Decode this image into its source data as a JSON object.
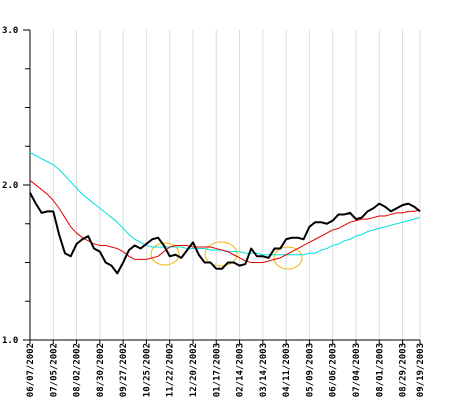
{
  "chart_data": {
    "type": "line",
    "categories": [
      "06/07/2002",
      null,
      null,
      null,
      "07/05/2002",
      null,
      null,
      null,
      "08/02/2002",
      null,
      null,
      null,
      "08/30/2002",
      null,
      null,
      null,
      "09/27/2002",
      null,
      null,
      null,
      "10/25/2002",
      null,
      null,
      null,
      "11/22/2002",
      null,
      null,
      null,
      "12/20/2002",
      null,
      null,
      null,
      "01/17/2003",
      null,
      null,
      null,
      "02/14/2003",
      null,
      null,
      null,
      "03/14/2003",
      null,
      null,
      null,
      "04/11/2003",
      null,
      null,
      null,
      "05/09/2003",
      null,
      null,
      null,
      "06/06/2003",
      null,
      null,
      null,
      "07/04/2003",
      null,
      null,
      null,
      "08/01/2003",
      null,
      null,
      null,
      "08/29/2003",
      null,
      null,
      "09/19/2003"
    ],
    "series": [
      {
        "color": "#000000",
        "values": [
          1.95,
          1.88,
          1.82,
          1.83,
          1.83,
          1.68,
          1.56,
          1.54,
          1.62,
          1.65,
          1.67,
          1.59,
          1.57,
          1.5,
          1.48,
          1.43,
          1.5,
          1.58,
          1.61,
          1.59,
          1.62,
          1.65,
          1.66,
          1.61,
          1.54,
          1.55,
          1.53,
          1.58,
          1.63,
          1.55,
          1.5,
          1.5,
          1.46,
          1.46,
          1.5,
          1.5,
          1.48,
          1.49,
          1.59,
          1.54,
          1.54,
          1.53,
          1.59,
          1.59,
          1.65,
          1.66,
          1.66,
          1.65,
          1.73,
          1.76,
          1.76,
          1.75,
          1.77,
          1.81,
          1.81,
          1.82,
          1.78,
          1.79,
          1.83,
          1.85,
          1.88,
          1.86,
          1.83,
          1.85,
          1.87,
          1.88,
          1.86,
          1.83
        ]
      },
      {
        "color": "#e00000",
        "values": [
          2.03,
          2.0,
          1.97,
          1.94,
          1.9,
          1.85,
          1.79,
          1.73,
          1.69,
          1.66,
          1.64,
          1.62,
          1.61,
          1.61,
          1.6,
          1.59,
          1.57,
          1.54,
          1.52,
          1.52,
          1.52,
          1.53,
          1.54,
          1.57,
          1.6,
          1.61,
          1.61,
          1.61,
          1.6,
          1.6,
          1.6,
          1.6,
          1.59,
          1.58,
          1.57,
          1.55,
          1.53,
          1.51,
          1.5,
          1.5,
          1.5,
          1.51,
          1.52,
          1.53,
          1.55,
          1.57,
          1.59,
          1.61,
          1.63,
          1.65,
          1.67,
          1.69,
          1.71,
          1.72,
          1.74,
          1.76,
          1.77,
          1.78,
          1.78,
          1.79,
          1.8,
          1.8,
          1.81,
          1.82,
          1.82,
          1.83,
          1.83,
          1.84
        ]
      },
      {
        "color": "#00e0e0",
        "values": [
          2.21,
          2.19,
          2.17,
          2.15,
          2.13,
          2.1,
          2.06,
          2.02,
          1.98,
          1.94,
          1.91,
          1.88,
          1.85,
          1.82,
          1.79,
          1.76,
          1.72,
          1.68,
          1.65,
          1.63,
          1.61,
          1.6,
          1.6,
          1.6,
          1.6,
          1.6,
          1.6,
          1.59,
          1.59,
          1.59,
          1.59,
          1.58,
          1.58,
          1.58,
          1.57,
          1.57,
          1.57,
          1.56,
          1.56,
          1.56,
          1.55,
          1.55,
          1.55,
          1.55,
          1.55,
          1.55,
          1.55,
          1.55,
          1.56,
          1.56,
          1.58,
          1.59,
          1.61,
          1.62,
          1.64,
          1.65,
          1.67,
          1.68,
          1.7,
          1.71,
          1.72,
          1.73,
          1.74,
          1.75,
          1.76,
          1.77,
          1.78,
          1.79
        ]
      }
    ],
    "ylim": [
      1,
      3
    ],
    "yticks": [
      {
        "value": 1,
        "label": "1.0"
      },
      {
        "value": 2,
        "label": "2.0"
      },
      {
        "value": 3,
        "label": "3.0"
      }
    ],
    "yminorticks": [
      1.25,
      1.5,
      1.75,
      2.25,
      2.5,
      2.75
    ],
    "grid": true
  }
}
